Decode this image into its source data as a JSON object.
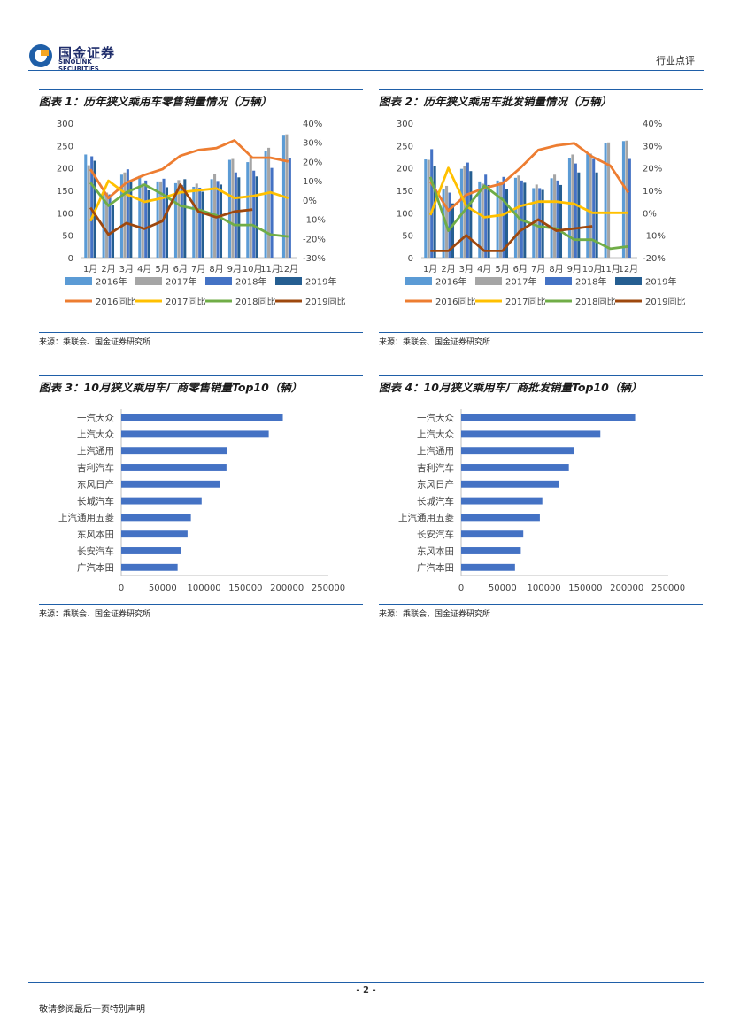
{
  "header": {
    "logo_cn": "国金证券",
    "logo_en": "SINOLINK SECURITIES",
    "category": "行业点评",
    "logo_color": "#1f5fa8"
  },
  "footer": {
    "page": "- 2 -",
    "note": "敬请参阅最后一页特别声明"
  },
  "colors": {
    "bar2016": "#5b9bd5",
    "bar2017": "#a5a5a5",
    "bar2018": "#4472c4",
    "bar2019": "#255e91",
    "line2016": "#ed7d31",
    "line2017": "#ffc000",
    "line2018": "#70ad47",
    "line2019": "#9e480e",
    "hbar": "#4472c4"
  },
  "charts": [
    {
      "title": "图表 1：历年狭义乘用车零售销量情况（万辆）",
      "source": "来源：乘联会、国金证券研究所",
      "chart_data": {
        "type": "bar+line",
        "categories": [
          "1月",
          "2月",
          "3月",
          "4月",
          "5月",
          "6月",
          "7月",
          "8月",
          "9月",
          "10月",
          "11月",
          "12月"
        ],
        "y_left_ticks": [
          "300",
          "250",
          "200",
          "150",
          "100",
          "50",
          "0"
        ],
        "y_right_ticks": [
          "40%",
          "30%",
          "20%",
          "10%",
          "0%",
          "-10%",
          "-20%",
          "-30%"
        ],
        "ylim_left": [
          0,
          300
        ],
        "ylim_right": [
          -30,
          40
        ],
        "bar_series": [
          {
            "name": "2016年",
            "values": [
              230,
              143,
              185,
              182,
              170,
              166,
              158,
              175,
              218,
              213,
              238,
              272
            ]
          },
          {
            "name": "2017年",
            "values": [
              206,
              145,
              190,
              165,
              170,
              173,
              165,
              186,
              220,
              225,
              245,
              275
            ]
          },
          {
            "name": "2018年",
            "values": [
              226,
              141,
              197,
              172,
              176,
              162,
              156,
              171,
              190,
              194,
              200,
              223
            ]
          },
          {
            "name": "2019年",
            "values": [
              216,
              118,
              172,
              150,
              157,
              175,
              147,
              163,
              179,
              181,
              null,
              null
            ]
          }
        ],
        "line_series": [
          {
            "name": "2016同比",
            "values": [
              16,
              1,
              9,
              13,
              16,
              23,
              26,
              27,
              31,
              22,
              22,
              20
            ]
          },
          {
            "name": "2017同比",
            "values": [
              -11,
              10,
              3,
              -1,
              1,
              4,
              5,
              6,
              1,
              2,
              4,
              1
            ]
          },
          {
            "name": "2018同比",
            "values": [
              9,
              -3,
              4,
              8,
              3,
              -3,
              -5,
              -8,
              -13,
              -13,
              -18,
              -19
            ]
          },
          {
            "name": "2019同比",
            "values": [
              -4,
              -18,
              -12,
              -15,
              -11,
              8,
              -6,
              -9,
              -6,
              -5,
              null,
              null
            ]
          }
        ],
        "legend_position": "bottom"
      }
    },
    {
      "title": "图表 2：历年狭义乘用车批发销量情况（万辆）",
      "source": "来源：乘联会、国金证券研究所",
      "chart_data": {
        "type": "bar+line",
        "categories": [
          "1月",
          "2月",
          "3月",
          "4月",
          "5月",
          "6月",
          "7月",
          "8月",
          "9月",
          "10月",
          "11月",
          "12月"
        ],
        "y_left_ticks": [
          "300",
          "250",
          "200",
          "150",
          "100",
          "50",
          "0"
        ],
        "y_right_ticks": [
          "40%",
          "30%",
          "20%",
          "10%",
          "0%",
          "-10%",
          "-20%"
        ],
        "ylim_left": [
          0,
          300
        ],
        "ylim_right": [
          -20,
          40
        ],
        "bar_series": [
          {
            "name": "2016年",
            "values": [
              219,
              153,
              198,
              170,
              172,
              178,
              155,
              177,
              222,
              231,
              255,
              260
            ]
          },
          {
            "name": "2017年",
            "values": [
              218,
              160,
              205,
              165,
              170,
              183,
              163,
              185,
              230,
              232,
              257,
              261
            ]
          },
          {
            "name": "2018年",
            "values": [
              242,
              145,
              212,
              185,
              180,
              172,
              155,
              172,
              210,
              220,
              null,
              220
            ]
          },
          {
            "name": "2019年",
            "values": [
              204,
              121,
              193,
              162,
              153,
              167,
              151,
              162,
              190,
              190,
              null,
              null
            ]
          }
        ],
        "line_series": [
          {
            "name": "2016同比",
            "values": [
              14,
              1,
              8,
              11,
              13,
              20,
              28,
              30,
              31,
              25,
              21,
              9
            ]
          },
          {
            "name": "2017同比",
            "values": [
              -1,
              20,
              3,
              -2,
              -1,
              3,
              5,
              5,
              4,
              0,
              0,
              0
            ]
          },
          {
            "name": "2018同比",
            "values": [
              16,
              -8,
              2,
              12,
              6,
              -3,
              -6,
              -7,
              -12,
              -12,
              -16,
              -15
            ]
          },
          {
            "name": "2019同比",
            "values": [
              -17,
              -17,
              -10,
              -17,
              -17,
              -8,
              -3,
              -8,
              -7,
              -6,
              null,
              null
            ]
          }
        ],
        "legend_position": "bottom"
      }
    },
    {
      "title": "图表 3：10月狭义乘用车厂商零售销量Top10（辆）",
      "source": "来源：乘联会、国金证券研究所",
      "chart_data": {
        "type": "bar",
        "orientation": "horizontal",
        "categories": [
          "一汽大众",
          "上汽大众",
          "上汽通用",
          "吉利汽车",
          "东风日产",
          "长城汽车",
          "上汽通用五菱",
          "东风本田",
          "长安汽车",
          "广汽本田"
        ],
        "values": [
          195000,
          178000,
          128000,
          127000,
          119000,
          97000,
          84000,
          80000,
          72000,
          68000
        ],
        "x_ticks": [
          "0",
          "50000",
          "100000",
          "150000",
          "200000",
          "250000"
        ],
        "xlim": [
          0,
          250000
        ]
      }
    },
    {
      "title": "图表 4：10月狭义乘用车厂商批发销量Top10（辆）",
      "source": "来源：乘联会、国金证券研究所",
      "chart_data": {
        "type": "bar",
        "orientation": "horizontal",
        "categories": [
          "一汽大众",
          "上汽大众",
          "上汽通用",
          "吉利汽车",
          "东风日产",
          "长城汽车",
          "上汽通用五菱",
          "长安汽车",
          "东风本田",
          "广汽本田"
        ],
        "values": [
          210000,
          168000,
          136000,
          130000,
          118000,
          98000,
          95000,
          75000,
          72000,
          65000
        ],
        "x_ticks": [
          "0",
          "50000",
          "100000",
          "150000",
          "200000",
          "250000"
        ],
        "xlim": [
          0,
          250000
        ]
      }
    }
  ]
}
